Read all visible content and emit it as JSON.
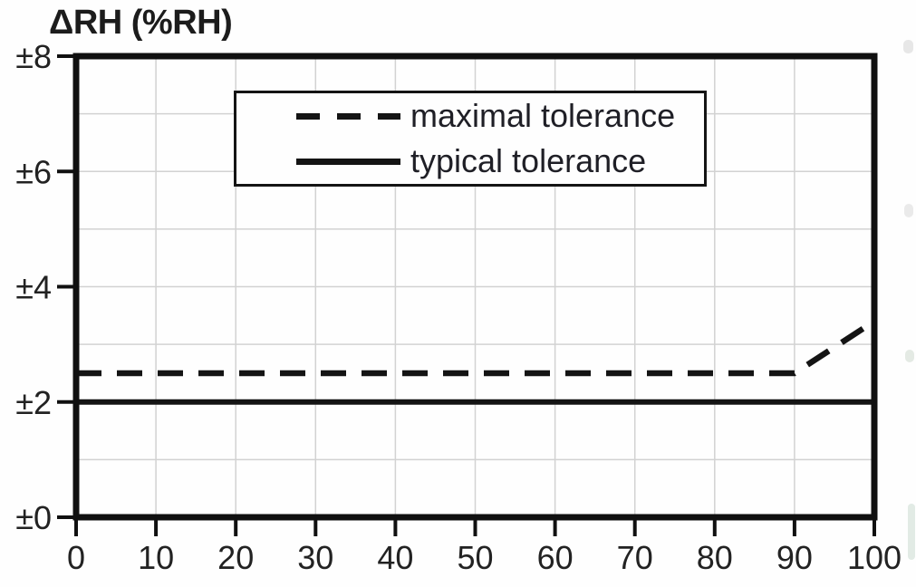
{
  "colors": {
    "line": "#141414",
    "grid": "#d2d2d2",
    "frame": "#101010",
    "text": "#222222",
    "background": "#fefefe"
  },
  "chart_data": {
    "type": "line",
    "title": "ΔRH (%RH)",
    "xlabel": "",
    "ylabel": "ΔRH (%RH)",
    "xlim": [
      0,
      100
    ],
    "ylim": [
      0,
      8
    ],
    "x_ticks": [
      0,
      10,
      20,
      30,
      40,
      50,
      60,
      70,
      80,
      90,
      100
    ],
    "x_tick_labels": [
      "0",
      "10",
      "20",
      "30",
      "40",
      "50",
      "60",
      "70",
      "80",
      "90",
      "100"
    ],
    "y_ticks": [
      0,
      2,
      4,
      6,
      8
    ],
    "y_tick_labels": [
      "±0",
      "±2",
      "±4",
      "±6",
      "±8"
    ],
    "grid": {
      "visible": true,
      "x_step": 10,
      "y_step": 1
    },
    "legend": {
      "position": "top-inside"
    },
    "series": [
      {
        "name": "maximal tolerance",
        "style": "dashed",
        "x": [
          0,
          90,
          100
        ],
        "y": [
          2.5,
          2.5,
          3.4
        ]
      },
      {
        "name": "typical tolerance",
        "style": "solid",
        "x": [
          0,
          100
        ],
        "y": [
          2.0,
          2.0
        ]
      }
    ]
  }
}
